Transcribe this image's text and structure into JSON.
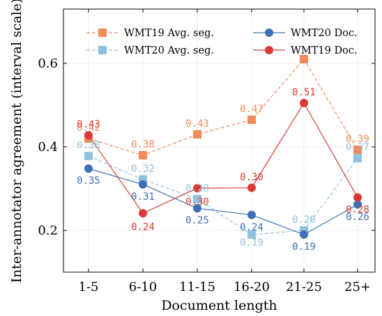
{
  "chart_data": {
    "type": "line",
    "categories": [
      "1-5",
      "6-10",
      "11-15",
      "16-20",
      "21-25",
      "25+"
    ],
    "xlabel": "Document length",
    "ylabel": "Inter-annotator agreement (interval scale)",
    "ylim": [
      0.1,
      0.73
    ],
    "yticks": [
      0.2,
      0.4,
      0.6
    ],
    "ytick_labels": [
      "0.2",
      "0.4",
      "0.6"
    ],
    "grid": true,
    "legend_position": "top",
    "series": [
      {
        "name": "WMT19 Avg. seg.",
        "color": "#f4895a",
        "marker": "square",
        "dashed": true,
        "values": [
          0.42,
          0.38,
          0.43,
          0.465,
          0.61,
          0.393
        ],
        "labels": [
          "0.42",
          "0.38",
          "0.43",
          "0.47",
          "",
          "0.39"
        ]
      },
      {
        "name": "WMT20 Avg. seg.",
        "color": "#8fc1de",
        "marker": "square",
        "dashed": true,
        "values": [
          0.378,
          0.322,
          0.275,
          0.19,
          0.2,
          0.373
        ],
        "labels": [
          "0.38",
          "0.32",
          "0.28",
          "0.19",
          "0.20",
          "0.37"
        ]
      },
      {
        "name": "WMT20 Doc.",
        "color": "#3f6fb5",
        "marker": "circle",
        "dashed": false,
        "values": [
          0.348,
          0.31,
          0.253,
          0.237,
          0.19,
          0.262
        ],
        "labels": [
          "0.35",
          "0.31",
          "0.25",
          "0.24",
          "0.19",
          "0.26"
        ]
      },
      {
        "name": "WMT19 Doc.",
        "color": "#d93a34",
        "marker": "circle",
        "dashed": false,
        "values": [
          0.428,
          0.241,
          0.301,
          0.302,
          0.505,
          0.279
        ],
        "labels": [
          "0.43",
          "0.24",
          "0.30",
          "0.30",
          "0.51",
          "0.28"
        ]
      }
    ]
  }
}
